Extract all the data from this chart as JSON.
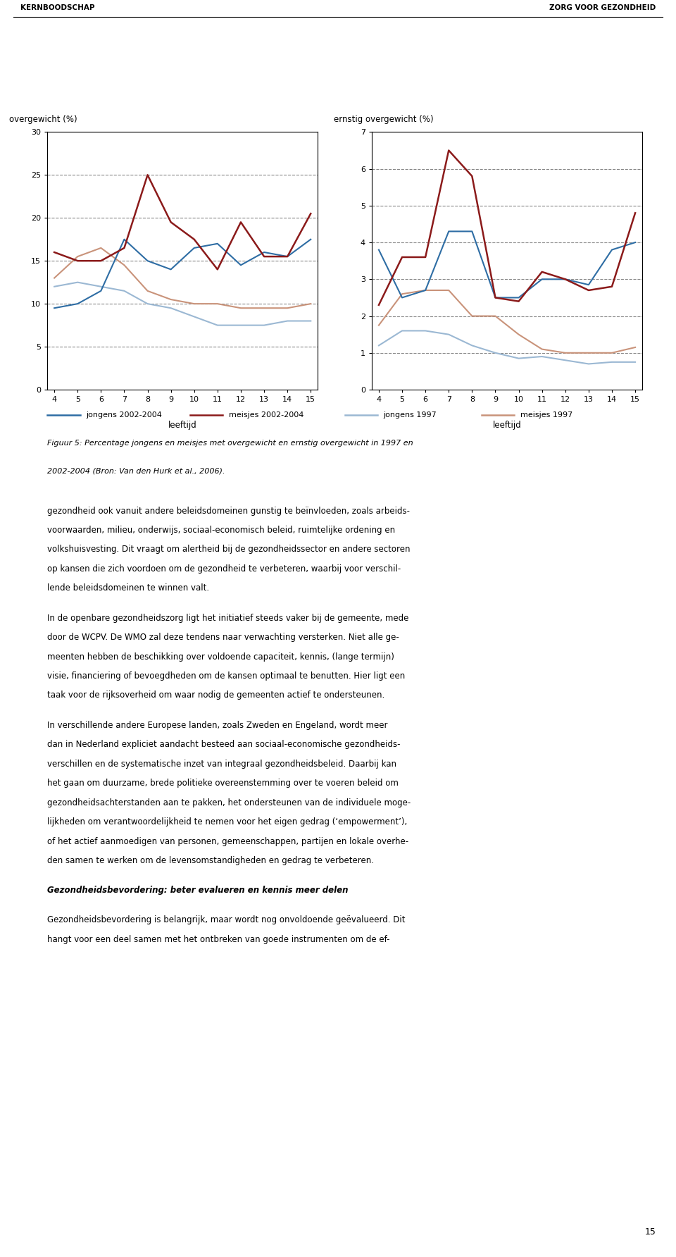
{
  "ages": [
    4,
    5,
    6,
    7,
    8,
    9,
    10,
    11,
    12,
    13,
    14,
    15
  ],
  "left_chart": {
    "ylabel": "overgewicht (%)",
    "ylim": [
      0,
      30
    ],
    "yticks": [
      0,
      5,
      10,
      15,
      20,
      25,
      30
    ],
    "grid_ticks": [
      5,
      10,
      15,
      20,
      25
    ],
    "jongens_2002": [
      9.5,
      10.0,
      11.5,
      17.5,
      15.0,
      14.0,
      16.5,
      17.0,
      14.5,
      16.0,
      15.5,
      17.5
    ],
    "meisjes_2002": [
      16.0,
      15.0,
      15.0,
      16.5,
      25.0,
      19.5,
      17.5,
      14.0,
      19.5,
      15.5,
      15.5,
      20.5
    ],
    "jongens_1997": [
      12.0,
      12.5,
      12.0,
      11.5,
      10.0,
      9.5,
      8.5,
      7.5,
      7.5,
      7.5,
      8.0,
      8.0
    ],
    "meisjes_1997": [
      13.0,
      15.5,
      16.5,
      14.5,
      11.5,
      10.5,
      10.0,
      10.0,
      9.5,
      9.5,
      9.5,
      10.0
    ]
  },
  "right_chart": {
    "ylabel": "ernstig overgewicht (%)",
    "ylim": [
      0,
      7
    ],
    "yticks": [
      0,
      1,
      2,
      3,
      4,
      5,
      6,
      7
    ],
    "grid_ticks": [
      1,
      2,
      3,
      4,
      5,
      6
    ],
    "jongens_2002": [
      3.8,
      2.5,
      2.7,
      4.3,
      4.3,
      2.5,
      2.5,
      3.0,
      3.0,
      2.85,
      3.8,
      4.0
    ],
    "meisjes_2002": [
      2.3,
      3.6,
      3.6,
      6.5,
      5.8,
      2.5,
      2.4,
      3.2,
      3.0,
      2.7,
      2.8,
      4.8
    ],
    "jongens_1997": [
      1.2,
      1.6,
      1.6,
      1.5,
      1.2,
      1.0,
      0.85,
      0.9,
      0.8,
      0.7,
      0.75,
      0.75
    ],
    "meisjes_1997": [
      1.75,
      2.6,
      2.7,
      2.7,
      2.0,
      2.0,
      1.5,
      1.1,
      1.0,
      1.0,
      1.0,
      1.15
    ]
  },
  "colors": {
    "jongens_2002": "#2E6DA4",
    "meisjes_2002": "#8B1A1A",
    "jongens_1997": "#9BB8D3",
    "meisjes_1997": "#C9937A"
  },
  "xlabel": "leeftijd",
  "legend_labels": [
    "jongens 2002-2004",
    "meisjes 2002-2004",
    "jongens 1997",
    "meisjes 1997"
  ],
  "caption_italic": "Figuur 5: Percentage jongens en meisjes met overgewicht en ernstig overgewicht in 1997 en\n2002-2004 (Bron: Van den Hurk et al., 2006).",
  "header_left": "KERNBOODSCHAP",
  "header_right": "ZORG VOOR GEZONDHEID",
  "page_number": "15",
  "body_paragraphs": [
    "gezondheid ook vanuit andere beleidsdomeinen gunstig te beïnvloeden, zoals arbeids-\nvoorwaarden, milieu, onderwijs, sociaal-economisch beleid, ruimtelijke ordening en\nvolkshuisvesting. Dit vraagt om alertheid bij de gezondheidssector en andere sectoren\nop kansen die zich voordoen om de gezondheid te verbeteren, waarbij voor verschil-\nlende beleidsdomeinen te winnen valt.",
    "In de openbare gezondheidszorg ligt het initiatief steeds vaker bij de gemeente, mede\ndoor de WCPV. De WMO zal deze tendens naar verwachting versterken. Niet alle ge-\nmeenten hebben de beschikking over voldoende capaciteit, kennis, (lange termijn)\nvisie, financiering of bevoegdheden om de kansen optimaal te benutten. Hier ligt een\ntaak voor de rijksoverheid om waar nodig de gemeenten actief te ondersteunen.",
    "In verschillende andere Europese landen, zoals Zweden en Engeland, wordt meer\ndan in Nederland expliciet aandacht besteed aan sociaal-economische gezondheids-\nverschillen en de systematische inzet van integraal gezondheidsbeleid. Daarbij kan\nhet gaan om duurzame, brede politieke overeenstemming over te voeren beleid om\ngezondheidsachterstanden aan te pakken, het ondersteunen van de individuele moge-\nlijkheden om verantwoordelijkheid te nemen voor het eigen gedrag (‘empowerment’),\nof het actief aanmoedigen van personen, gemeenschappen, partijen en lokale overhe-\nden samen te werken om de levensomstandigheden en gedrag te verbeteren.",
    "bold_italic:Gezondheidsbevordering: beter evalueren en kennis meer delen",
    "Gezondheidsbevordering is belangrijk, maar wordt nog onvoldoende geëvalueerd. Dit\nhangt voor een deel samen met het ontbreken van goede instrumenten om de ef-"
  ]
}
